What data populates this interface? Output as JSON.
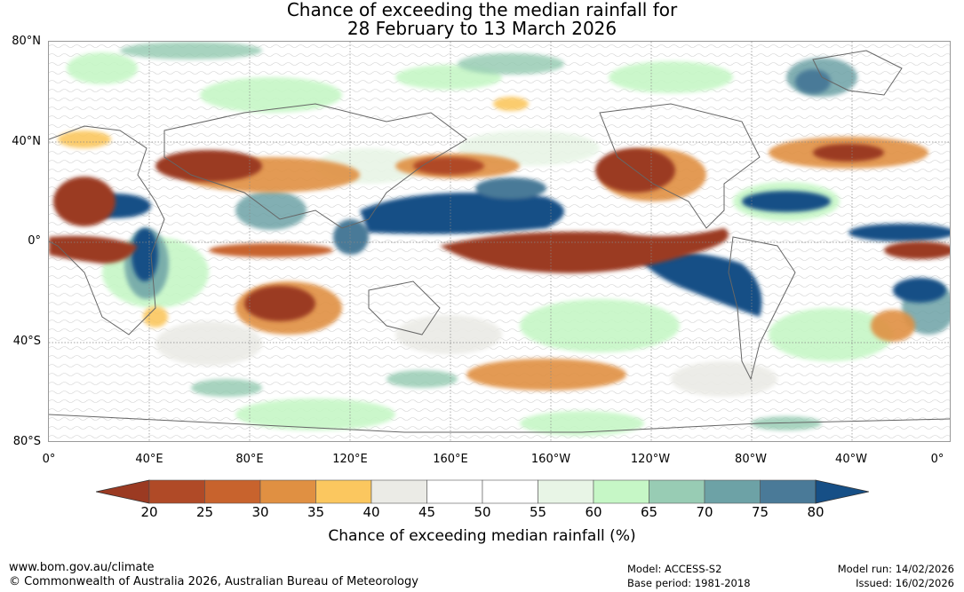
{
  "title": {
    "line1": "Chance of exceeding the median rainfall for",
    "line2": "28 February to 13 March 2026"
  },
  "map": {
    "lat_labels": [
      "80°N",
      "40°N",
      "0°",
      "40°S",
      "80°S"
    ],
    "lon_labels": [
      "0°",
      "40°E",
      "80°E",
      "120°E",
      "160°E",
      "160°W",
      "120°W",
      "80°W",
      "40°W",
      "0°"
    ]
  },
  "colorbar": {
    "ticks": [
      "20",
      "25",
      "30",
      "35",
      "40",
      "45",
      "50",
      "55",
      "60",
      "65",
      "70",
      "75",
      "80"
    ],
    "colors": [
      "#9b3a22",
      "#b04a27",
      "#c8632d",
      "#e09042",
      "#fbc75f",
      "#ebebe6",
      "#ffffff",
      "#ffffff",
      "#e8f5e6",
      "#c6f7c6",
      "#98ccb4",
      "#6da2a6",
      "#4a7a98"
    ],
    "low_color": "#9b3a22",
    "high_color": "#164f86",
    "label": "Chance of exceeding median rainfall (%)"
  },
  "footer": {
    "website": "www.bom.gov.au/climate",
    "copyright": "© Commonwealth of Australia 2026, Australian Bureau of Meteorology",
    "model": "Model: ACCESS-S2",
    "base_period": "Base period: 1981-2018",
    "model_run": "Model run: 14/02/2026",
    "issued": "Issued: 16/02/2026"
  }
}
